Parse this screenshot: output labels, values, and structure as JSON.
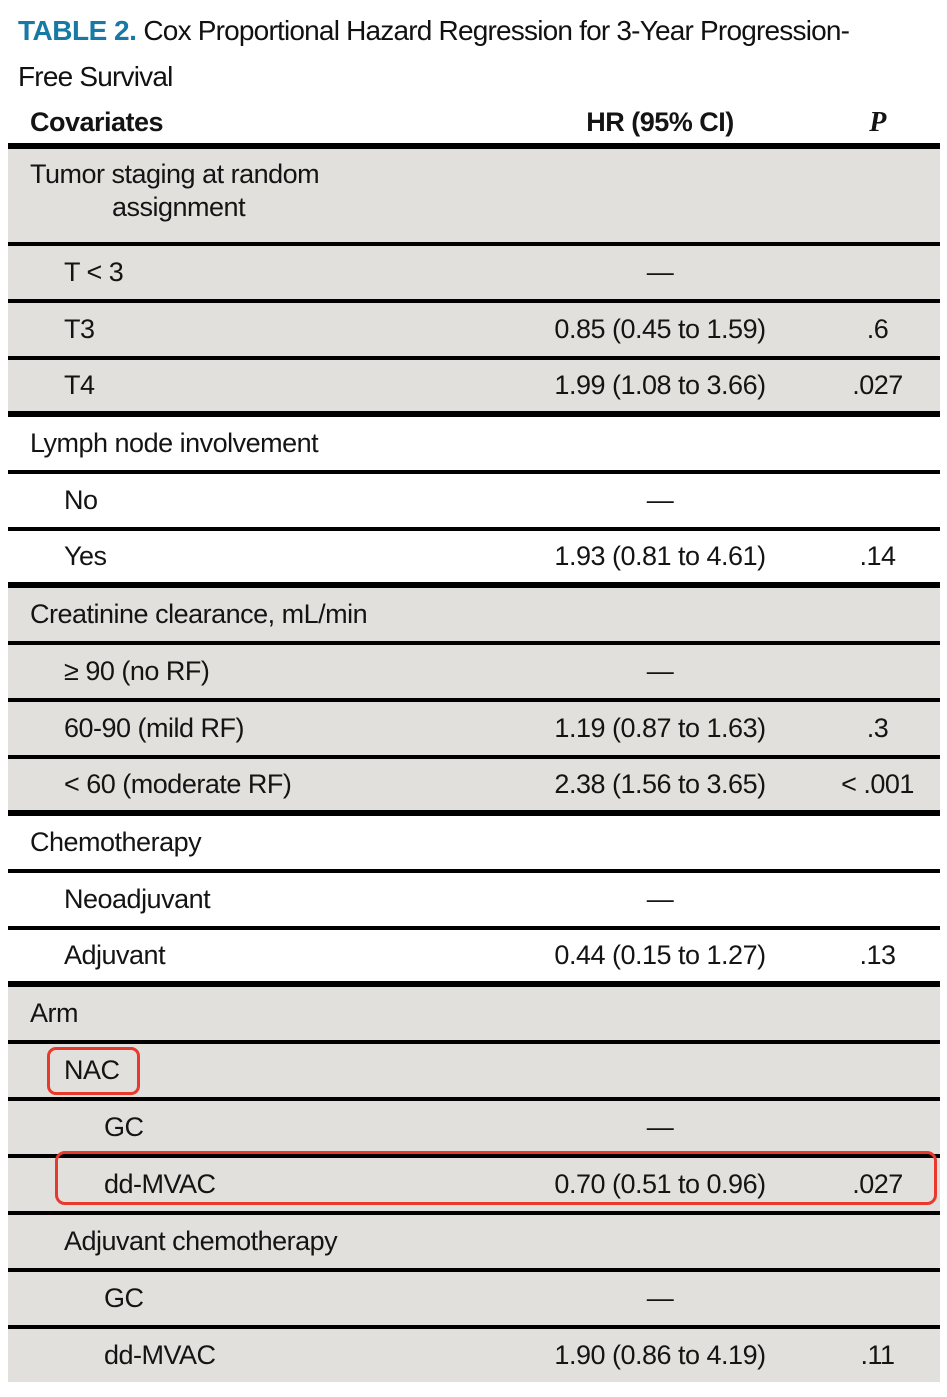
{
  "title": {
    "tag": "TABLE 2.",
    "line1": " Cox Proportional Hazard Regression for 3-Year Progression-",
    "line2": "Free Survival"
  },
  "columns": {
    "covariates": "Covariates",
    "hr": "HR (95% CI)",
    "p": "P"
  },
  "rows": [
    {
      "label": "Tumor staging at random",
      "label2": "assignment",
      "hr": "",
      "p": ""
    },
    {
      "label": "T < 3",
      "hr": "—",
      "p": ""
    },
    {
      "label": "T3",
      "hr": "0.85 (0.45 to 1.59)",
      "p": ".6"
    },
    {
      "label": "T4",
      "hr": "1.99 (1.08 to 3.66)",
      "p": ".027"
    },
    {
      "label": "Lymph node involvement",
      "hr": "",
      "p": ""
    },
    {
      "label": "No",
      "hr": "—",
      "p": ""
    },
    {
      "label": "Yes",
      "hr": "1.93 (0.81 to 4.61)",
      "p": ".14"
    },
    {
      "label": "Creatinine clearance, mL/min",
      "hr": "",
      "p": ""
    },
    {
      "label": "≥ 90 (no RF)",
      "hr": "—",
      "p": ""
    },
    {
      "label": "60-90 (mild RF)",
      "hr": "1.19 (0.87 to 1.63)",
      "p": ".3"
    },
    {
      "label": "< 60 (moderate RF)",
      "hr": "2.38 (1.56 to 3.65)",
      "p": "< .001"
    },
    {
      "label": "Chemotherapy",
      "hr": "",
      "p": ""
    },
    {
      "label": "Neoadjuvant",
      "hr": "—",
      "p": ""
    },
    {
      "label": "Adjuvant",
      "hr": "0.44 (0.15 to 1.27)",
      "p": ".13"
    },
    {
      "label": "Arm",
      "hr": "",
      "p": ""
    },
    {
      "label": "NAC",
      "hr": "",
      "p": ""
    },
    {
      "label": "GC",
      "hr": "—",
      "p": ""
    },
    {
      "label": "dd-MVAC",
      "hr": "0.70 (0.51 to 0.96)",
      "p": ".027"
    },
    {
      "label": "Adjuvant chemotherapy",
      "hr": "",
      "p": ""
    },
    {
      "label": "GC",
      "hr": "—",
      "p": ""
    },
    {
      "label": "dd-MVAC",
      "hr": "1.90 (0.86 to 4.19)",
      "p": ".11"
    }
  ],
  "annotations": {
    "highlighted_covariate": "NAC",
    "highlighted_row": "dd-MVAC 0.70 (0.51 to 0.96) .027"
  },
  "colors": {
    "table_label_accent": "#1779a5",
    "row_shade": "#e1e0dd",
    "highlight_red": "#e8392c",
    "rule_black": "#000000"
  }
}
